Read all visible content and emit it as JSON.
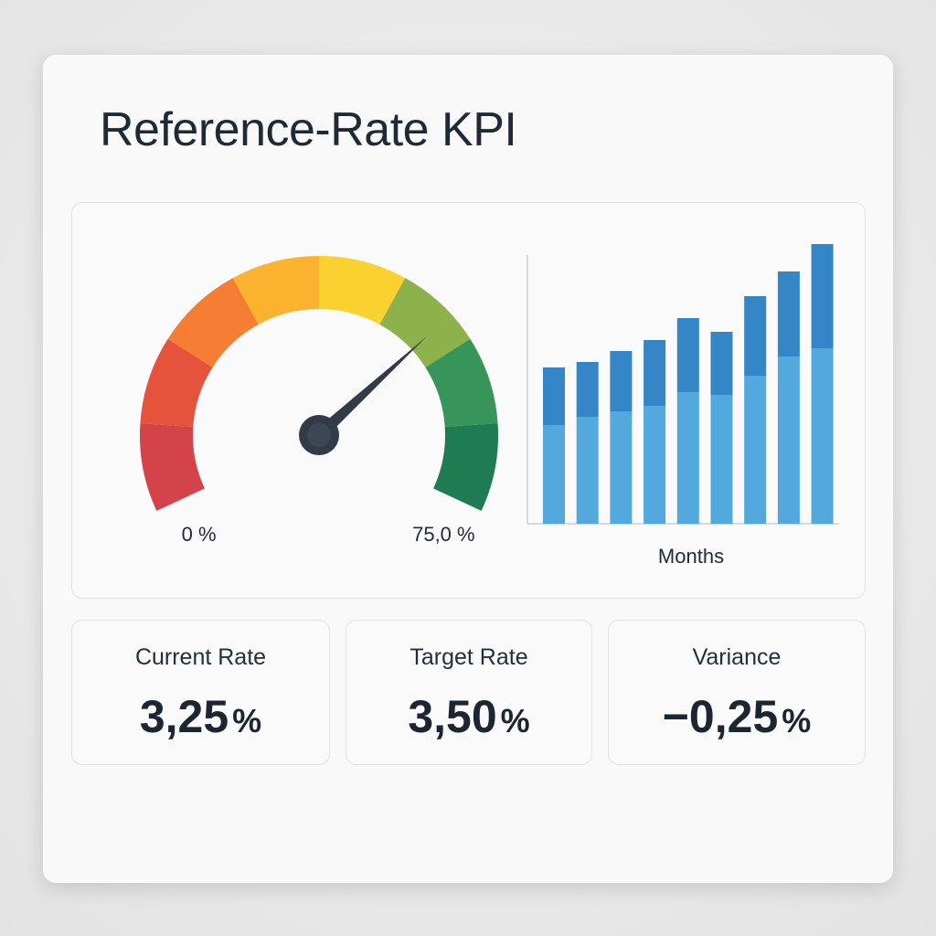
{
  "title": "Reference-Rate KPI",
  "chart_data": [
    {
      "type": "gauge",
      "value": 53,
      "range": [
        0,
        75
      ],
      "ticks": [
        {
          "value": 0,
          "label": "0 %"
        },
        {
          "value": 75,
          "label": "75,0 %"
        }
      ],
      "colors": [
        "#d4434a",
        "#e6533d",
        "#f57e34",
        "#fbb22e",
        "#f9d230",
        "#8db14b",
        "#379559",
        "#1f7b52"
      ],
      "needle_color": "#323b47"
    },
    {
      "type": "bar",
      "stacked": true,
      "xlabel": "Months",
      "categories": [
        null,
        null,
        null,
        null,
        null,
        null,
        null,
        null,
        null
      ],
      "series": [
        {
          "color": "#53a8dd",
          "values": [
            36,
            39,
            41,
            43,
            48,
            47,
            54,
            61,
            64
          ]
        },
        {
          "color": "#3486c7",
          "values": [
            21,
            20,
            22,
            24,
            27,
            23,
            29,
            31,
            38
          ]
        }
      ],
      "ylim": [
        0,
        110
      ]
    }
  ],
  "kpis": [
    {
      "label": "Current Rate",
      "value": "3,25",
      "unit": "%"
    },
    {
      "label": "Target Rate",
      "value": "3,50",
      "unit": "%"
    },
    {
      "label": "Variance",
      "value": "−0,25",
      "unit": "%"
    }
  ]
}
